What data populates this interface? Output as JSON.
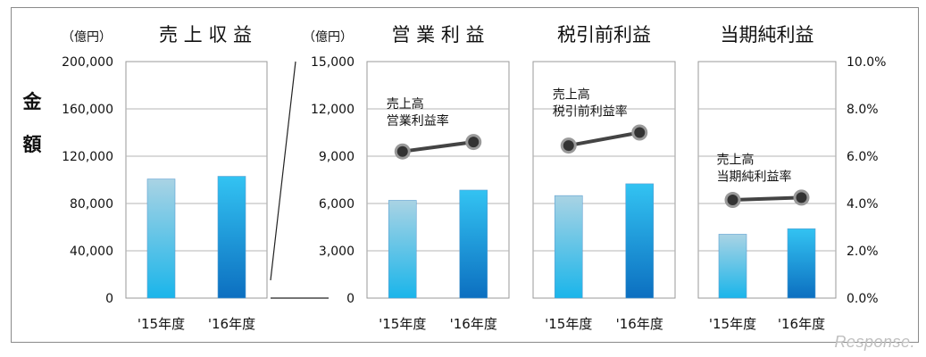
{
  "colors": {
    "bar_top": "#a9d3e4",
    "bar_bottom": "#1ab5ea",
    "bar2_top": "#33c3f2",
    "bar2_bottom": "#0c6fc0",
    "line": "#444444",
    "marker": "#333333"
  },
  "chart_data": [
    {
      "type": "bar",
      "title": "売 上 収 益",
      "unit": "（億円）",
      "ylabel": "金額",
      "categories": [
        "'15年度",
        "'16年度"
      ],
      "values": [
        100700,
        103000
      ],
      "ylim": [
        0,
        200000
      ],
      "ticks": [
        "0",
        "40,000",
        "80,000",
        "120,000",
        "160,000",
        "200,000"
      ],
      "grid": true
    },
    {
      "type": "bar",
      "title": "営 業 利 益",
      "unit": "（億円）",
      "categories": [
        "'15年度",
        "'16年度"
      ],
      "values": [
        6200,
        6850
      ],
      "ylim": [
        0,
        15000
      ],
      "ticks": [
        "0",
        "3,000",
        "6,000",
        "9,000",
        "12,000",
        "15,000"
      ],
      "grid": true,
      "line_series": {
        "name": "売上高\n営業利益率",
        "values": [
          6.2,
          6.6
        ]
      }
    },
    {
      "type": "bar",
      "title": "税引前利益",
      "categories": [
        "'15年度",
        "'16年度"
      ],
      "values": [
        6500,
        7250
      ],
      "ylim": [
        0,
        15000
      ],
      "grid": true,
      "line_series": {
        "name": "売上高\n税引前利益率",
        "values": [
          6.45,
          7.0
        ]
      }
    },
    {
      "type": "bar",
      "title": "当期純利益",
      "categories": [
        "'15年度",
        "'16年度"
      ],
      "values": [
        4050,
        4400
      ],
      "ylim": [
        0,
        15000
      ],
      "grid": true,
      "right_axis": {
        "ticks": [
          "0.0%",
          "2.0%",
          "4.0%",
          "6.0%",
          "8.0%",
          "10.0%"
        ],
        "ylim": [
          0,
          10
        ]
      },
      "line_series": {
        "name": "売上高\n当期純利益率",
        "values": [
          4.15,
          4.25
        ]
      }
    }
  ],
  "watermark": "Response."
}
